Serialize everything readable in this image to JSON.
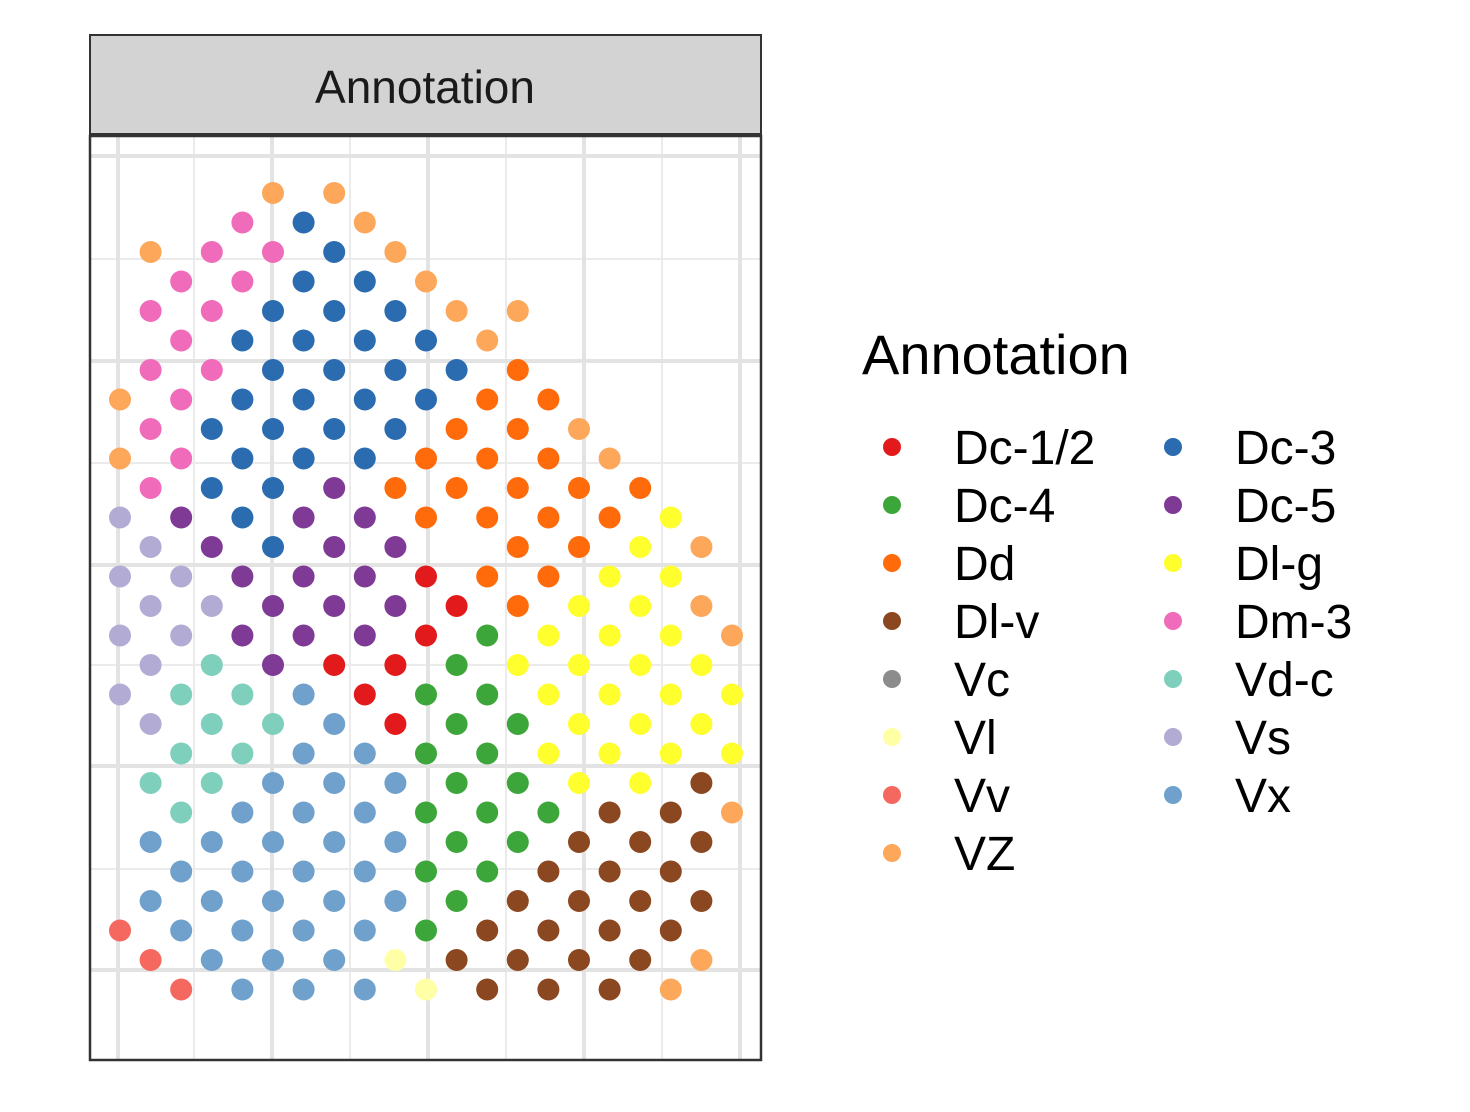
{
  "chart_data": {
    "type": "scatter",
    "title": "",
    "xlabel": "",
    "ylabel": "",
    "facet_label": "Annotation",
    "grid": true,
    "axes_ticks_shown": false,
    "legend": {
      "title": "Annotation",
      "position": "right",
      "columns": 2,
      "entries": [
        {
          "label": "Dc-1/2",
          "color": "#e31a1c"
        },
        {
          "label": "Dc-3",
          "color": "#2b6cb0"
        },
        {
          "label": "Dc-4",
          "color": "#3da63a"
        },
        {
          "label": "Dc-5",
          "color": "#7f3a96"
        },
        {
          "label": "Dd",
          "color": "#ff6a0a"
        },
        {
          "label": "Dl-g",
          "color": "#ffff2e"
        },
        {
          "label": "Dl-v",
          "color": "#8b4720"
        },
        {
          "label": "Dm-3",
          "color": "#f06cba"
        },
        {
          "label": "Vc",
          "color": "#8c8c8c"
        },
        {
          "label": "Vd-c",
          "color": "#7ecfbc"
        },
        {
          "label": "Vl",
          "color": "#ffffa6"
        },
        {
          "label": "Vs",
          "color": "#b2acd4"
        },
        {
          "label": "Vv",
          "color": "#f5685f"
        },
        {
          "label": "Vx",
          "color": "#6fa1cc"
        },
        {
          "label": "VZ",
          "color": "#fda75b"
        }
      ]
    },
    "x_range": [
      0,
      21
    ],
    "y_range": [
      0,
      29
    ],
    "points": [
      {
        "x": 5,
        "y": 28,
        "label": "VZ"
      },
      {
        "x": 7,
        "y": 28,
        "label": "VZ"
      },
      {
        "x": 4,
        "y": 27,
        "label": "Dm-3"
      },
      {
        "x": 6,
        "y": 27,
        "label": "Dc-3"
      },
      {
        "x": 8,
        "y": 27,
        "label": "VZ"
      },
      {
        "x": 1,
        "y": 26,
        "label": "VZ"
      },
      {
        "x": 3,
        "y": 26,
        "label": "Dm-3"
      },
      {
        "x": 5,
        "y": 26,
        "label": "Dm-3"
      },
      {
        "x": 7,
        "y": 26,
        "label": "Dc-3"
      },
      {
        "x": 9,
        "y": 26,
        "label": "VZ"
      },
      {
        "x": 2,
        "y": 25,
        "label": "Dm-3"
      },
      {
        "x": 4,
        "y": 25,
        "label": "Dm-3"
      },
      {
        "x": 6,
        "y": 25,
        "label": "Dc-3"
      },
      {
        "x": 8,
        "y": 25,
        "label": "Dc-3"
      },
      {
        "x": 10,
        "y": 25,
        "label": "VZ"
      },
      {
        "x": 1,
        "y": 24,
        "label": "Dm-3"
      },
      {
        "x": 3,
        "y": 24,
        "label": "Dm-3"
      },
      {
        "x": 5,
        "y": 24,
        "label": "Dc-3"
      },
      {
        "x": 7,
        "y": 24,
        "label": "Dc-3"
      },
      {
        "x": 9,
        "y": 24,
        "label": "Dc-3"
      },
      {
        "x": 11,
        "y": 24,
        "label": "VZ"
      },
      {
        "x": 13,
        "y": 24,
        "label": "VZ"
      },
      {
        "x": 2,
        "y": 23,
        "label": "Dm-3"
      },
      {
        "x": 4,
        "y": 23,
        "label": "Dc-3"
      },
      {
        "x": 6,
        "y": 23,
        "label": "Dc-3"
      },
      {
        "x": 8,
        "y": 23,
        "label": "Dc-3"
      },
      {
        "x": 10,
        "y": 23,
        "label": "Dc-3"
      },
      {
        "x": 12,
        "y": 23,
        "label": "VZ"
      },
      {
        "x": 1,
        "y": 22,
        "label": "Dm-3"
      },
      {
        "x": 3,
        "y": 22,
        "label": "Dm-3"
      },
      {
        "x": 5,
        "y": 22,
        "label": "Dc-3"
      },
      {
        "x": 7,
        "y": 22,
        "label": "Dc-3"
      },
      {
        "x": 9,
        "y": 22,
        "label": "Dc-3"
      },
      {
        "x": 11,
        "y": 22,
        "label": "Dc-3"
      },
      {
        "x": 13,
        "y": 22,
        "label": "Dd"
      },
      {
        "x": 0,
        "y": 21,
        "label": "VZ"
      },
      {
        "x": 2,
        "y": 21,
        "label": "Dm-3"
      },
      {
        "x": 4,
        "y": 21,
        "label": "Dc-3"
      },
      {
        "x": 6,
        "y": 21,
        "label": "Dc-3"
      },
      {
        "x": 8,
        "y": 21,
        "label": "Dc-3"
      },
      {
        "x": 10,
        "y": 21,
        "label": "Dc-3"
      },
      {
        "x": 12,
        "y": 21,
        "label": "Dd"
      },
      {
        "x": 14,
        "y": 21,
        "label": "Dd"
      },
      {
        "x": 1,
        "y": 20,
        "label": "Dm-3"
      },
      {
        "x": 3,
        "y": 20,
        "label": "Dc-3"
      },
      {
        "x": 5,
        "y": 20,
        "label": "Dc-3"
      },
      {
        "x": 7,
        "y": 20,
        "label": "Dc-3"
      },
      {
        "x": 9,
        "y": 20,
        "label": "Dc-3"
      },
      {
        "x": 11,
        "y": 20,
        "label": "Dd"
      },
      {
        "x": 13,
        "y": 20,
        "label": "Dd"
      },
      {
        "x": 15,
        "y": 20,
        "label": "VZ"
      },
      {
        "x": 0,
        "y": 19,
        "label": "VZ"
      },
      {
        "x": 2,
        "y": 19,
        "label": "Dm-3"
      },
      {
        "x": 4,
        "y": 19,
        "label": "Dc-3"
      },
      {
        "x": 6,
        "y": 19,
        "label": "Dc-3"
      },
      {
        "x": 8,
        "y": 19,
        "label": "Dc-3"
      },
      {
        "x": 10,
        "y": 19,
        "label": "Dd"
      },
      {
        "x": 12,
        "y": 19,
        "label": "Dd"
      },
      {
        "x": 14,
        "y": 19,
        "label": "Dd"
      },
      {
        "x": 16,
        "y": 19,
        "label": "VZ"
      },
      {
        "x": 1,
        "y": 18,
        "label": "Dm-3"
      },
      {
        "x": 3,
        "y": 18,
        "label": "Dc-3"
      },
      {
        "x": 5,
        "y": 18,
        "label": "Dc-3"
      },
      {
        "x": 7,
        "y": 18,
        "label": "Dc-5"
      },
      {
        "x": 9,
        "y": 18,
        "label": "Dd"
      },
      {
        "x": 11,
        "y": 18,
        "label": "Dd"
      },
      {
        "x": 13,
        "y": 18,
        "label": "Dd"
      },
      {
        "x": 15,
        "y": 18,
        "label": "Dd"
      },
      {
        "x": 17,
        "y": 18,
        "label": "Dd"
      },
      {
        "x": 0,
        "y": 17,
        "label": "Vs"
      },
      {
        "x": 2,
        "y": 17,
        "label": "Dc-5"
      },
      {
        "x": 4,
        "y": 17,
        "label": "Dc-3"
      },
      {
        "x": 6,
        "y": 17,
        "label": "Dc-5"
      },
      {
        "x": 8,
        "y": 17,
        "label": "Dc-5"
      },
      {
        "x": 10,
        "y": 17,
        "label": "Dd"
      },
      {
        "x": 12,
        "y": 17,
        "label": "Dd"
      },
      {
        "x": 14,
        "y": 17,
        "label": "Dd"
      },
      {
        "x": 16,
        "y": 17,
        "label": "Dd"
      },
      {
        "x": 18,
        "y": 17,
        "label": "Dl-g"
      },
      {
        "x": 1,
        "y": 16,
        "label": "Vs"
      },
      {
        "x": 3,
        "y": 16,
        "label": "Dc-5"
      },
      {
        "x": 5,
        "y": 16,
        "label": "Dc-3"
      },
      {
        "x": 7,
        "y": 16,
        "label": "Dc-5"
      },
      {
        "x": 9,
        "y": 16,
        "label": "Dc-5"
      },
      {
        "x": 13,
        "y": 16,
        "label": "Dd"
      },
      {
        "x": 15,
        "y": 16,
        "label": "Dd"
      },
      {
        "x": 17,
        "y": 16,
        "label": "Dl-g"
      },
      {
        "x": 19,
        "y": 16,
        "label": "VZ"
      },
      {
        "x": 0,
        "y": 15,
        "label": "Vs"
      },
      {
        "x": 2,
        "y": 15,
        "label": "Vs"
      },
      {
        "x": 4,
        "y": 15,
        "label": "Dc-5"
      },
      {
        "x": 6,
        "y": 15,
        "label": "Dc-5"
      },
      {
        "x": 8,
        "y": 15,
        "label": "Dc-5"
      },
      {
        "x": 10,
        "y": 15,
        "label": "Dc-1/2"
      },
      {
        "x": 12,
        "y": 15,
        "label": "Dd"
      },
      {
        "x": 14,
        "y": 15,
        "label": "Dd"
      },
      {
        "x": 16,
        "y": 15,
        "label": "Dl-g"
      },
      {
        "x": 18,
        "y": 15,
        "label": "Dl-g"
      },
      {
        "x": 1,
        "y": 14,
        "label": "Vs"
      },
      {
        "x": 3,
        "y": 14,
        "label": "Vs"
      },
      {
        "x": 5,
        "y": 14,
        "label": "Dc-5"
      },
      {
        "x": 7,
        "y": 14,
        "label": "Dc-5"
      },
      {
        "x": 9,
        "y": 14,
        "label": "Dc-5"
      },
      {
        "x": 11,
        "y": 14,
        "label": "Dc-1/2"
      },
      {
        "x": 13,
        "y": 14,
        "label": "Dd"
      },
      {
        "x": 15,
        "y": 14,
        "label": "Dl-g"
      },
      {
        "x": 17,
        "y": 14,
        "label": "Dl-g"
      },
      {
        "x": 19,
        "y": 14,
        "label": "VZ"
      },
      {
        "x": 0,
        "y": 13,
        "label": "Vs"
      },
      {
        "x": 2,
        "y": 13,
        "label": "Vs"
      },
      {
        "x": 4,
        "y": 13,
        "label": "Dc-5"
      },
      {
        "x": 6,
        "y": 13,
        "label": "Dc-5"
      },
      {
        "x": 8,
        "y": 13,
        "label": "Dc-5"
      },
      {
        "x": 10,
        "y": 13,
        "label": "Dc-1/2"
      },
      {
        "x": 12,
        "y": 13,
        "label": "Dc-4"
      },
      {
        "x": 14,
        "y": 13,
        "label": "Dl-g"
      },
      {
        "x": 16,
        "y": 13,
        "label": "Dl-g"
      },
      {
        "x": 18,
        "y": 13,
        "label": "Dl-g"
      },
      {
        "x": 20,
        "y": 13,
        "label": "VZ"
      },
      {
        "x": 1,
        "y": 12,
        "label": "Vs"
      },
      {
        "x": 3,
        "y": 12,
        "label": "Vd-c"
      },
      {
        "x": 5,
        "y": 12,
        "label": "Dc-5"
      },
      {
        "x": 7,
        "y": 12,
        "label": "Dc-1/2"
      },
      {
        "x": 9,
        "y": 12,
        "label": "Dc-1/2"
      },
      {
        "x": 11,
        "y": 12,
        "label": "Dc-4"
      },
      {
        "x": 13,
        "y": 12,
        "label": "Dl-g"
      },
      {
        "x": 15,
        "y": 12,
        "label": "Dl-g"
      },
      {
        "x": 17,
        "y": 12,
        "label": "Dl-g"
      },
      {
        "x": 19,
        "y": 12,
        "label": "Dl-g"
      },
      {
        "x": 0,
        "y": 11,
        "label": "Vs"
      },
      {
        "x": 2,
        "y": 11,
        "label": "Vd-c"
      },
      {
        "x": 4,
        "y": 11,
        "label": "Vd-c"
      },
      {
        "x": 6,
        "y": 11,
        "label": "Vx"
      },
      {
        "x": 8,
        "y": 11,
        "label": "Dc-1/2"
      },
      {
        "x": 10,
        "y": 11,
        "label": "Dc-4"
      },
      {
        "x": 12,
        "y": 11,
        "label": "Dc-4"
      },
      {
        "x": 14,
        "y": 11,
        "label": "Dl-g"
      },
      {
        "x": 16,
        "y": 11,
        "label": "Dl-g"
      },
      {
        "x": 18,
        "y": 11,
        "label": "Dl-g"
      },
      {
        "x": 20,
        "y": 11,
        "label": "Dl-g"
      },
      {
        "x": 1,
        "y": 10,
        "label": "Vs"
      },
      {
        "x": 3,
        "y": 10,
        "label": "Vd-c"
      },
      {
        "x": 5,
        "y": 10,
        "label": "Vd-c"
      },
      {
        "x": 7,
        "y": 10,
        "label": "Vx"
      },
      {
        "x": 9,
        "y": 10,
        "label": "Dc-1/2"
      },
      {
        "x": 11,
        "y": 10,
        "label": "Dc-4"
      },
      {
        "x": 13,
        "y": 10,
        "label": "Dc-4"
      },
      {
        "x": 15,
        "y": 10,
        "label": "Dl-g"
      },
      {
        "x": 17,
        "y": 10,
        "label": "Dl-g"
      },
      {
        "x": 19,
        "y": 10,
        "label": "Dl-g"
      },
      {
        "x": 2,
        "y": 9,
        "label": "Vd-c"
      },
      {
        "x": 4,
        "y": 9,
        "label": "Vd-c"
      },
      {
        "x": 6,
        "y": 9,
        "label": "Vx"
      },
      {
        "x": 8,
        "y": 9,
        "label": "Vx"
      },
      {
        "x": 10,
        "y": 9,
        "label": "Dc-4"
      },
      {
        "x": 12,
        "y": 9,
        "label": "Dc-4"
      },
      {
        "x": 14,
        "y": 9,
        "label": "Dl-g"
      },
      {
        "x": 16,
        "y": 9,
        "label": "Dl-g"
      },
      {
        "x": 18,
        "y": 9,
        "label": "Dl-g"
      },
      {
        "x": 20,
        "y": 9,
        "label": "Dl-g"
      },
      {
        "x": 1,
        "y": 8,
        "label": "Vd-c"
      },
      {
        "x": 3,
        "y": 8,
        "label": "Vd-c"
      },
      {
        "x": 5,
        "y": 8,
        "label": "Vx"
      },
      {
        "x": 7,
        "y": 8,
        "label": "Vx"
      },
      {
        "x": 9,
        "y": 8,
        "label": "Vx"
      },
      {
        "x": 11,
        "y": 8,
        "label": "Dc-4"
      },
      {
        "x": 13,
        "y": 8,
        "label": "Dc-4"
      },
      {
        "x": 15,
        "y": 8,
        "label": "Dl-g"
      },
      {
        "x": 17,
        "y": 8,
        "label": "Dl-g"
      },
      {
        "x": 19,
        "y": 8,
        "label": "Dl-v"
      },
      {
        "x": 2,
        "y": 7,
        "label": "Vd-c"
      },
      {
        "x": 4,
        "y": 7,
        "label": "Vx"
      },
      {
        "x": 6,
        "y": 7,
        "label": "Vx"
      },
      {
        "x": 8,
        "y": 7,
        "label": "Vx"
      },
      {
        "x": 10,
        "y": 7,
        "label": "Dc-4"
      },
      {
        "x": 12,
        "y": 7,
        "label": "Dc-4"
      },
      {
        "x": 14,
        "y": 7,
        "label": "Dc-4"
      },
      {
        "x": 16,
        "y": 7,
        "label": "Dl-v"
      },
      {
        "x": 18,
        "y": 7,
        "label": "Dl-v"
      },
      {
        "x": 20,
        "y": 7,
        "label": "VZ"
      },
      {
        "x": 1,
        "y": 6,
        "label": "Vx"
      },
      {
        "x": 3,
        "y": 6,
        "label": "Vx"
      },
      {
        "x": 5,
        "y": 6,
        "label": "Vx"
      },
      {
        "x": 7,
        "y": 6,
        "label": "Vx"
      },
      {
        "x": 9,
        "y": 6,
        "label": "Vx"
      },
      {
        "x": 11,
        "y": 6,
        "label": "Dc-4"
      },
      {
        "x": 13,
        "y": 6,
        "label": "Dc-4"
      },
      {
        "x": 15,
        "y": 6,
        "label": "Dl-v"
      },
      {
        "x": 17,
        "y": 6,
        "label": "Dl-v"
      },
      {
        "x": 19,
        "y": 6,
        "label": "Dl-v"
      },
      {
        "x": 2,
        "y": 5,
        "label": "Vx"
      },
      {
        "x": 4,
        "y": 5,
        "label": "Vx"
      },
      {
        "x": 6,
        "y": 5,
        "label": "Vx"
      },
      {
        "x": 8,
        "y": 5,
        "label": "Vx"
      },
      {
        "x": 10,
        "y": 5,
        "label": "Dc-4"
      },
      {
        "x": 12,
        "y": 5,
        "label": "Dc-4"
      },
      {
        "x": 14,
        "y": 5,
        "label": "Dl-v"
      },
      {
        "x": 16,
        "y": 5,
        "label": "Dl-v"
      },
      {
        "x": 18,
        "y": 5,
        "label": "Dl-v"
      },
      {
        "x": 1,
        "y": 4,
        "label": "Vx"
      },
      {
        "x": 3,
        "y": 4,
        "label": "Vx"
      },
      {
        "x": 5,
        "y": 4,
        "label": "Vx"
      },
      {
        "x": 7,
        "y": 4,
        "label": "Vx"
      },
      {
        "x": 9,
        "y": 4,
        "label": "Vx"
      },
      {
        "x": 11,
        "y": 4,
        "label": "Dc-4"
      },
      {
        "x": 13,
        "y": 4,
        "label": "Dl-v"
      },
      {
        "x": 15,
        "y": 4,
        "label": "Dl-v"
      },
      {
        "x": 17,
        "y": 4,
        "label": "Dl-v"
      },
      {
        "x": 19,
        "y": 4,
        "label": "Dl-v"
      },
      {
        "x": 0,
        "y": 3,
        "label": "Vv"
      },
      {
        "x": 2,
        "y": 3,
        "label": "Vx"
      },
      {
        "x": 4,
        "y": 3,
        "label": "Vx"
      },
      {
        "x": 6,
        "y": 3,
        "label": "Vx"
      },
      {
        "x": 8,
        "y": 3,
        "label": "Vx"
      },
      {
        "x": 10,
        "y": 3,
        "label": "Dc-4"
      },
      {
        "x": 12,
        "y": 3,
        "label": "Dl-v"
      },
      {
        "x": 14,
        "y": 3,
        "label": "Dl-v"
      },
      {
        "x": 16,
        "y": 3,
        "label": "Dl-v"
      },
      {
        "x": 18,
        "y": 3,
        "label": "Dl-v"
      },
      {
        "x": 1,
        "y": 2,
        "label": "Vv"
      },
      {
        "x": 3,
        "y": 2,
        "label": "Vx"
      },
      {
        "x": 5,
        "y": 2,
        "label": "Vx"
      },
      {
        "x": 7,
        "y": 2,
        "label": "Vx"
      },
      {
        "x": 9,
        "y": 2,
        "label": "Vl"
      },
      {
        "x": 11,
        "y": 2,
        "label": "Dl-v"
      },
      {
        "x": 13,
        "y": 2,
        "label": "Dl-v"
      },
      {
        "x": 15,
        "y": 2,
        "label": "Dl-v"
      },
      {
        "x": 17,
        "y": 2,
        "label": "Dl-v"
      },
      {
        "x": 19,
        "y": 2,
        "label": "VZ"
      },
      {
        "x": 2,
        "y": 1,
        "label": "Vv"
      },
      {
        "x": 4,
        "y": 1,
        "label": "Vx"
      },
      {
        "x": 6,
        "y": 1,
        "label": "Vx"
      },
      {
        "x": 8,
        "y": 1,
        "label": "Vx"
      },
      {
        "x": 10,
        "y": 1,
        "label": "Vl"
      },
      {
        "x": 12,
        "y": 1,
        "label": "Dl-v"
      },
      {
        "x": 14,
        "y": 1,
        "label": "Dl-v"
      },
      {
        "x": 16,
        "y": 1,
        "label": "Dl-v"
      },
      {
        "x": 18,
        "y": 1,
        "label": "VZ"
      }
    ]
  }
}
